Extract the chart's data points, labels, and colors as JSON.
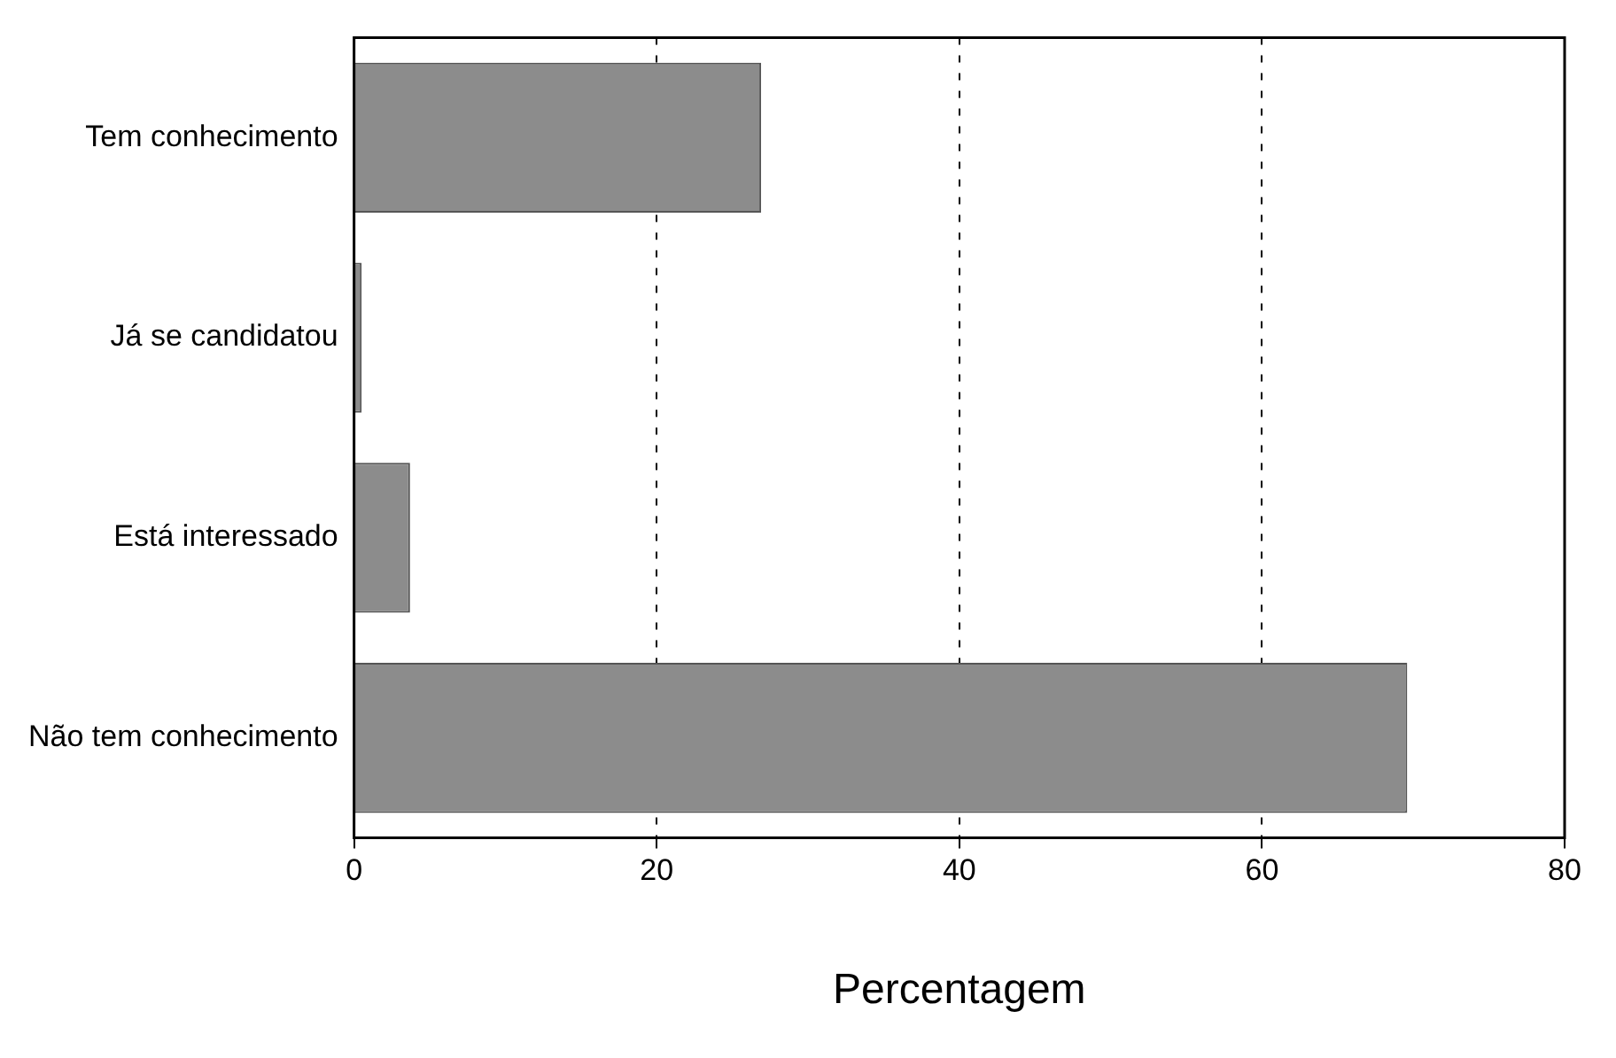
{
  "chart_data": {
    "type": "bar",
    "orientation": "horizontal",
    "xlabel": "Percentagem",
    "categories": [
      "Tem conhecimento",
      "Já se candidatou",
      "Está interessado",
      "Não tem conhecimento"
    ],
    "values": [
      26.9,
      0.5,
      3.7,
      69.6
    ],
    "color": "#8c8c8c",
    "xlim": [
      0,
      80
    ],
    "xticks": [
      0,
      20,
      40,
      60,
      80
    ],
    "grid": "x"
  }
}
